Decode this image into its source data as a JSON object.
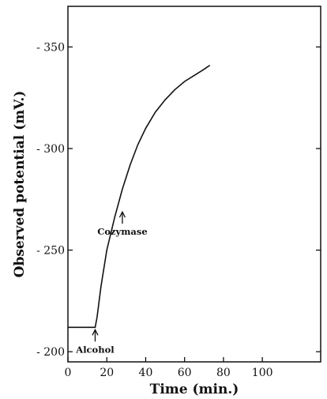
{
  "chart_data": {
    "type": "line",
    "title": "",
    "xlabel": "Time (min.)",
    "ylabel": "Observed potential (mV.)",
    "xlim": [
      0,
      130
    ],
    "ylim": [
      -195,
      -370
    ],
    "x_ticks": [
      0,
      20,
      40,
      60,
      80,
      100
    ],
    "y_ticks": [
      -200,
      -250,
      -300,
      -350
    ],
    "y_tick_labels": [
      "- 200",
      "- 250",
      "- 300",
      "- 350"
    ],
    "grid": false,
    "series": [
      {
        "x": [
          0,
          5,
          10,
          14,
          15,
          17,
          20,
          24,
          28,
          32,
          36,
          40,
          45,
          50,
          55,
          60,
          65,
          70,
          73
        ],
        "y": [
          -212,
          -212,
          -212,
          -212,
          -217,
          -232,
          -250,
          -266,
          -280,
          -292,
          -302,
          -310,
          -318,
          -324,
          -329,
          -333,
          -336,
          -339,
          -341
        ]
      }
    ],
    "annotations": [
      {
        "text": "Alcohol",
        "x": 14,
        "y": -212
      },
      {
        "text": "Cozymase",
        "x": 28,
        "y": -270
      }
    ]
  }
}
